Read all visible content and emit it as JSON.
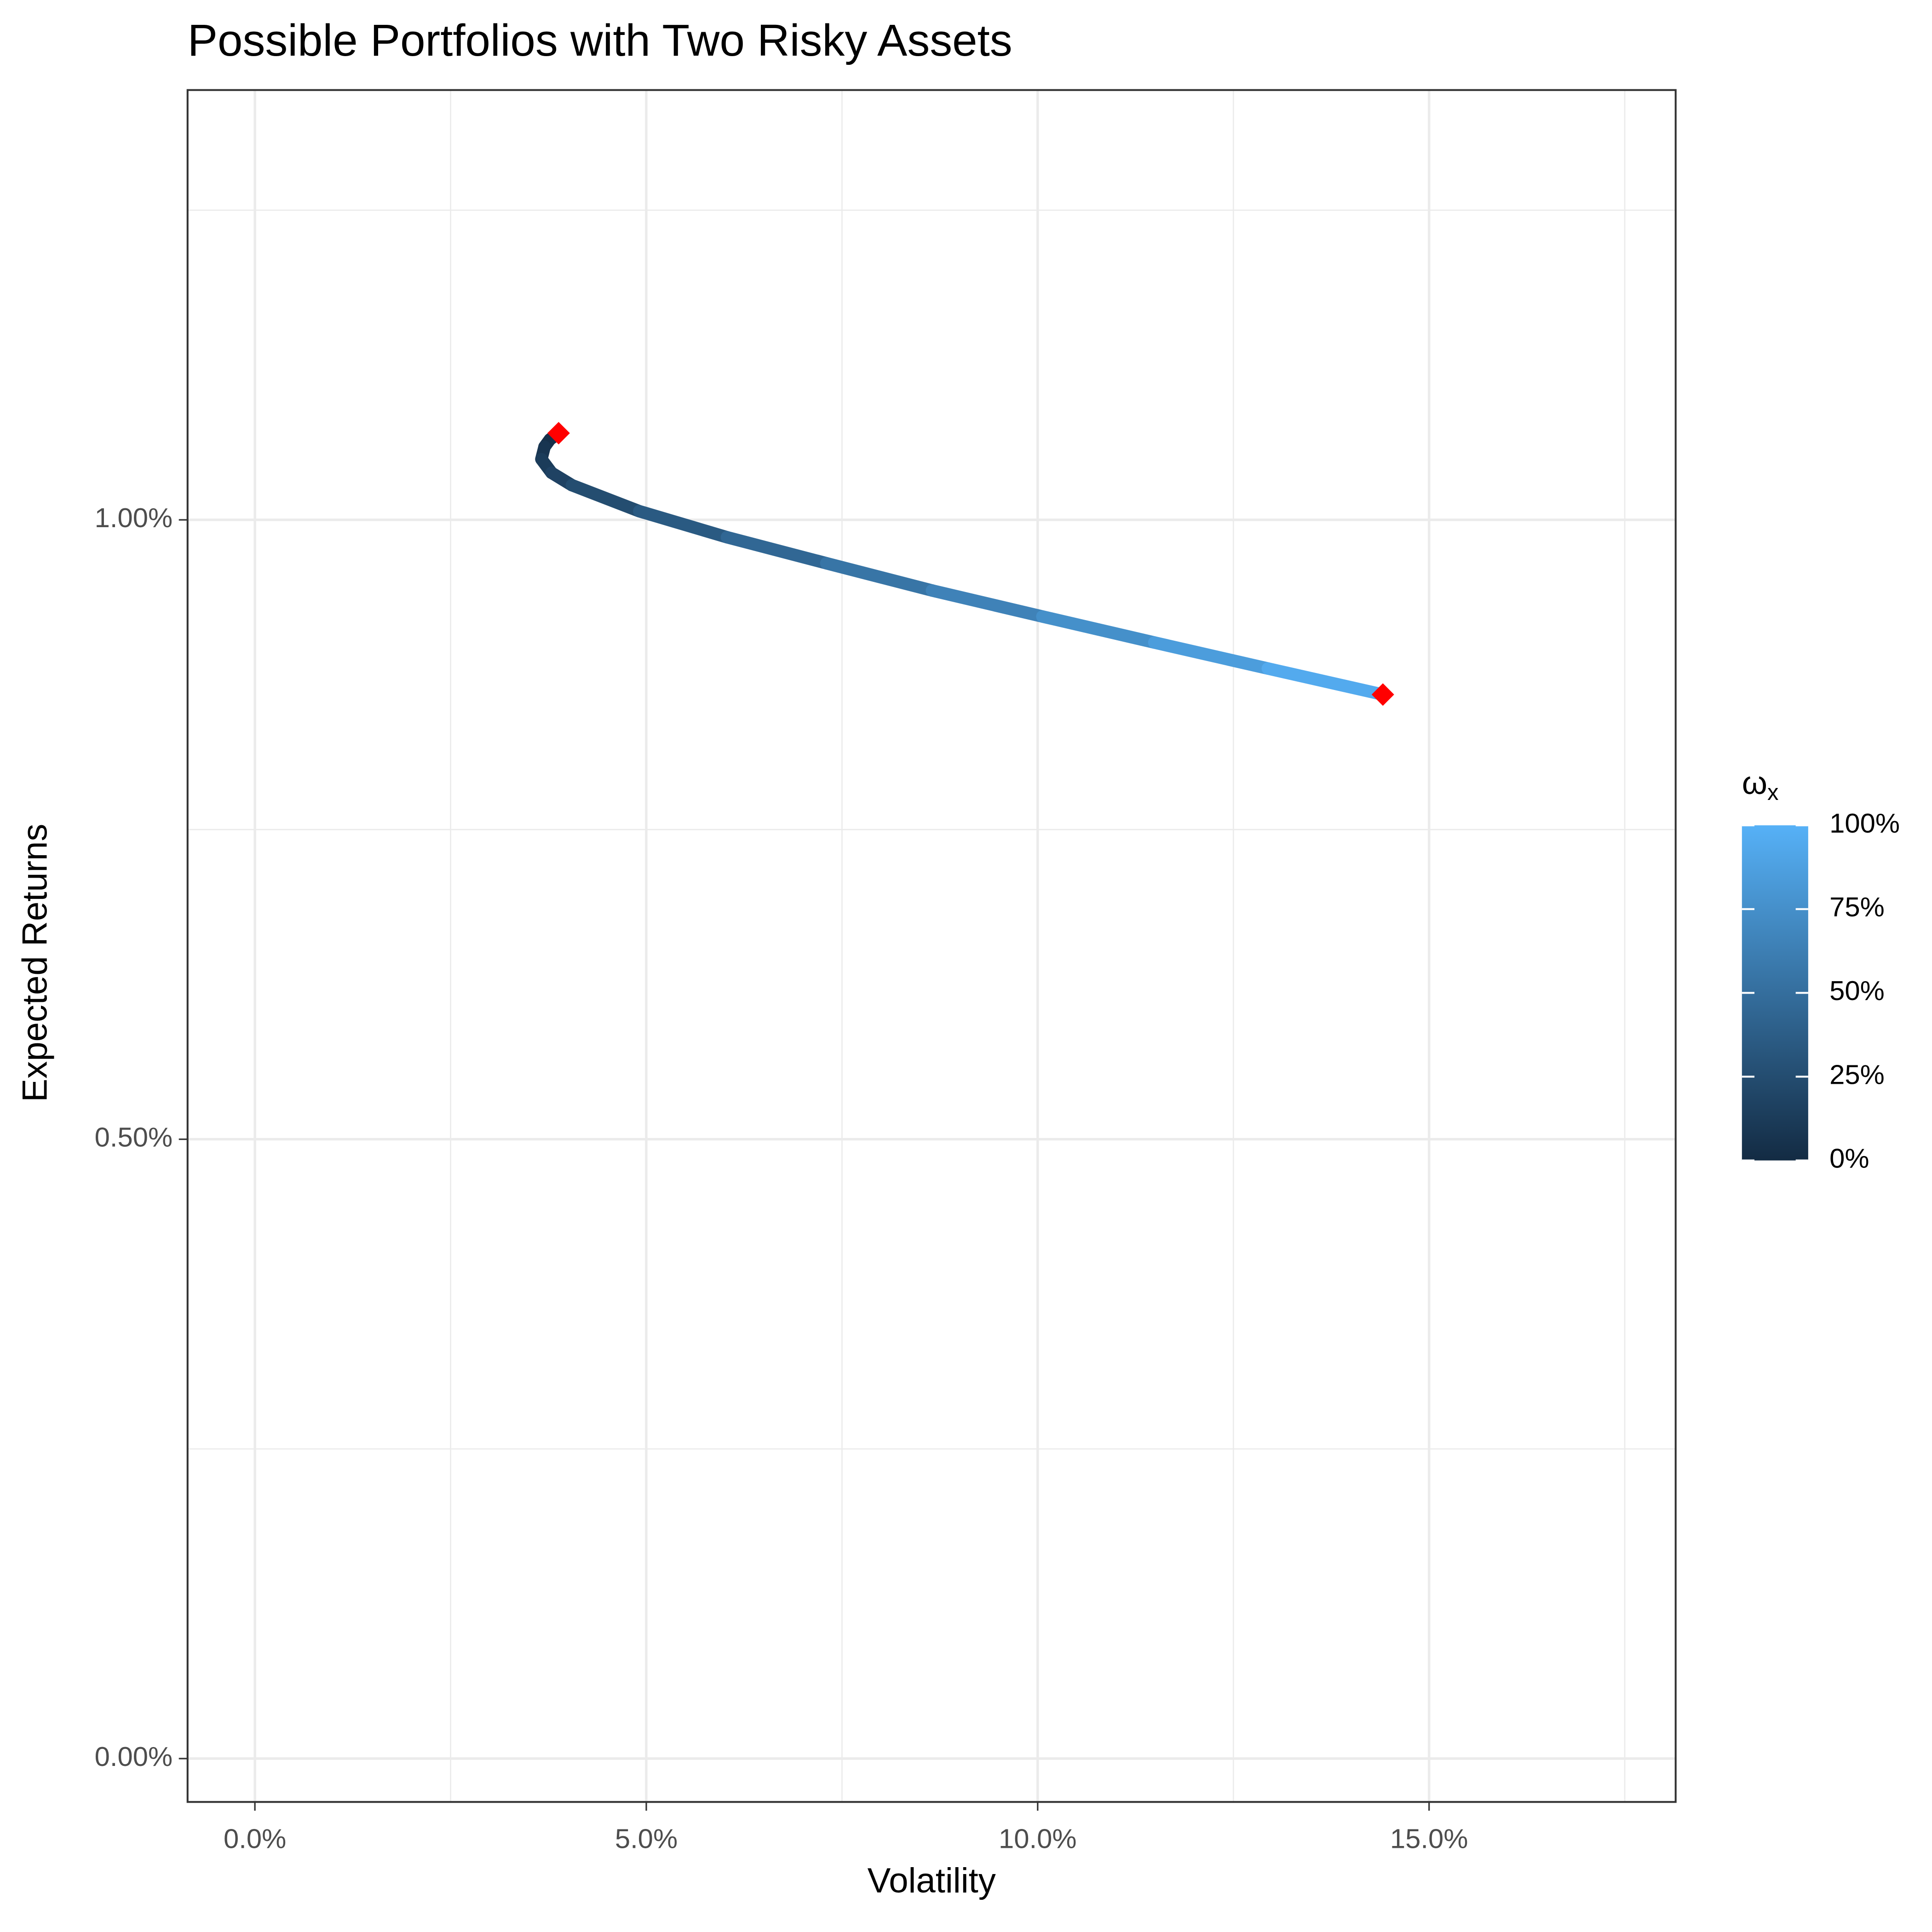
{
  "chart_data": {
    "type": "line",
    "title": "Possible Portfolios with Two Risky Assets",
    "x_label": "Volatility",
    "y_label": "Expected Returns",
    "xlim": [
      -0.86,
      18.15
    ],
    "ylim": [
      -0.035,
      1.347
    ],
    "xticks": [
      {
        "value": 0,
        "label": "0.0%"
      },
      {
        "value": 5,
        "label": "5.0%"
      },
      {
        "value": 10,
        "label": "10.0%"
      },
      {
        "value": 15,
        "label": "15.0%"
      }
    ],
    "yticks": [
      {
        "value": 0,
        "label": "0.00%"
      },
      {
        "value": 0.5,
        "label": "0.50%"
      },
      {
        "value": 1,
        "label": "1.00%"
      }
    ],
    "xminor": [
      2.5,
      7.5,
      12.5,
      17.5
    ],
    "yminor": [
      0.25,
      0.75,
      1.25
    ],
    "grid": true,
    "series": [
      {
        "x": [
          3.88,
          3.77,
          3.7,
          3.66,
          3.79,
          4.05,
          4.91,
          6.03,
          7.3,
          8.65,
          10.06,
          11.49,
          12.94,
          14.41
        ],
        "values": [
          1.07,
          1.065,
          1.059,
          1.049,
          1.038,
          1.028,
          1.007,
          0.986,
          0.965,
          0.943,
          0.922,
          0.901,
          0.88,
          0.859
        ],
        "weights": [
          0,
          2.5,
          5,
          10,
          15,
          20,
          30,
          40,
          50,
          60,
          70,
          80,
          90,
          100
        ]
      }
    ],
    "points": {
      "color": "#ff0000",
      "x": [
        3.88,
        14.41
      ],
      "values": [
        1.07,
        0.859
      ]
    },
    "colorbar": {
      "title": {
        "symbol": "ω",
        "subscript": "x"
      },
      "low_color": "#132B43",
      "high_color": "#56B1F7",
      "lim": [
        0,
        100
      ],
      "ticks": [
        {
          "value": 0,
          "label": "0%"
        },
        {
          "value": 25,
          "label": "25%"
        },
        {
          "value": 50,
          "label": "50%"
        },
        {
          "value": 75,
          "label": "75%"
        },
        {
          "value": 100,
          "label": "100%"
        }
      ]
    }
  }
}
